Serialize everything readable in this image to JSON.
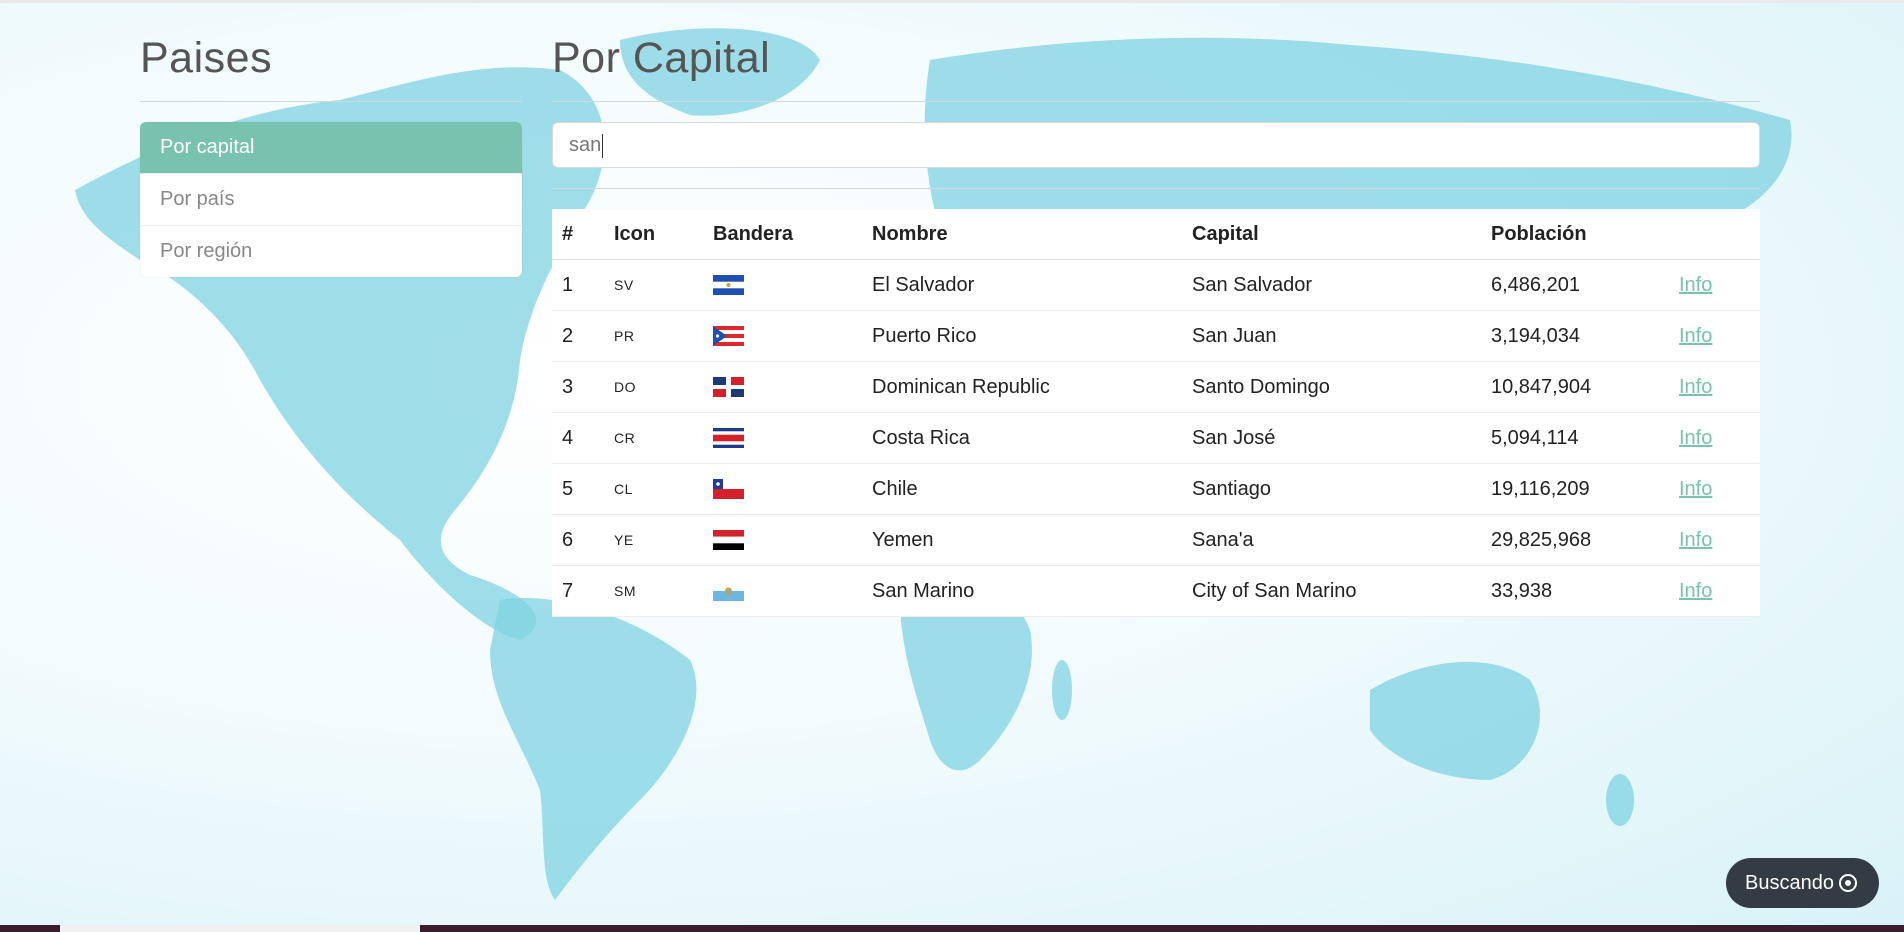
{
  "sidebar": {
    "title": "Paises",
    "items": [
      {
        "label": "Por capital",
        "active": true
      },
      {
        "label": "Por país",
        "active": false
      },
      {
        "label": "Por región",
        "active": false
      }
    ]
  },
  "main": {
    "title": "Por Capital",
    "search": {
      "value": "san",
      "placeholder": ""
    },
    "table": {
      "headers": [
        "#",
        "Icon",
        "Bandera",
        "Nombre",
        "Capital",
        "Población",
        ""
      ],
      "rows": [
        {
          "n": "1",
          "code": "SV",
          "flag": "sv-flag-icon",
          "name": "El Salvador",
          "capital": "San Salvador",
          "population": "6,486,201",
          "link": "Info"
        },
        {
          "n": "2",
          "code": "PR",
          "flag": "pr-flag-icon",
          "name": "Puerto Rico",
          "capital": "San Juan",
          "population": "3,194,034",
          "link": "Info"
        },
        {
          "n": "3",
          "code": "DO",
          "flag": "do-flag-icon",
          "name": "Dominican Republic",
          "capital": "Santo Domingo",
          "population": "10,847,904",
          "link": "Info"
        },
        {
          "n": "4",
          "code": "CR",
          "flag": "cr-flag-icon",
          "name": "Costa Rica",
          "capital": "San José",
          "population": "5,094,114",
          "link": "Info"
        },
        {
          "n": "5",
          "code": "CL",
          "flag": "cl-flag-icon",
          "name": "Chile",
          "capital": "Santiago",
          "population": "19,116,209",
          "link": "Info"
        },
        {
          "n": "6",
          "code": "YE",
          "flag": "ye-flag-icon",
          "name": "Yemen",
          "capital": "Sana'a",
          "population": "29,825,968",
          "link": "Info"
        },
        {
          "n": "7",
          "code": "SM",
          "flag": "sm-flag-icon",
          "name": "San Marino",
          "capital": "City of San Marino",
          "population": "33,938",
          "link": "Info"
        }
      ]
    }
  },
  "toast": {
    "label": "Buscando",
    "icon": "loading-ring-icon"
  },
  "colors": {
    "accent": "#79c2ad",
    "map": "#7fd3e2",
    "toast_bg": "#333c44"
  }
}
